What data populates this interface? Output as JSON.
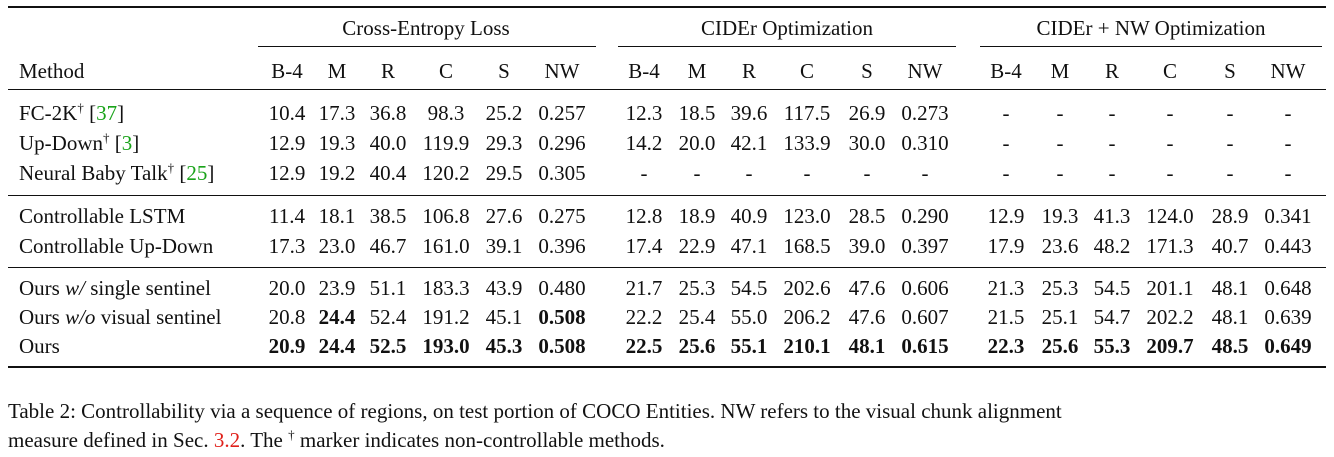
{
  "groups": [
    "Cross-Entropy Loss",
    "CIDEr Optimization",
    "CIDEr + NW Optimization"
  ],
  "method_header": "Method",
  "metrics": [
    "B-4",
    "M",
    "R",
    "C",
    "S",
    "NW"
  ],
  "ref_symbol": "†",
  "rows": [
    {
      "name": "FC-2K",
      "dagger": true,
      "ref": "37",
      "cells": [
        "10.4",
        "17.3",
        "36.8",
        "98.3",
        "25.2",
        "0.257",
        "12.3",
        "18.5",
        "39.6",
        "117.5",
        "26.9",
        "0.273",
        "-",
        "-",
        "-",
        "-",
        "-",
        "-"
      ],
      "bold": []
    },
    {
      "name": "Up-Down",
      "dagger": true,
      "ref": "3",
      "cells": [
        "12.9",
        "19.3",
        "40.0",
        "119.9",
        "29.3",
        "0.296",
        "14.2",
        "20.0",
        "42.1",
        "133.9",
        "30.0",
        "0.310",
        "-",
        "-",
        "-",
        "-",
        "-",
        "-"
      ],
      "bold": []
    },
    {
      "name": "Neural Baby Talk",
      "dagger": true,
      "ref": "25",
      "cells": [
        "12.9",
        "19.2",
        "40.4",
        "120.2",
        "29.5",
        "0.305",
        "-",
        "-",
        "-",
        "-",
        "-",
        "-",
        "-",
        "-",
        "-",
        "-",
        "-",
        "-"
      ],
      "bold": []
    },
    {
      "name": "Controllable LSTM",
      "cells": [
        "11.4",
        "18.1",
        "38.5",
        "106.8",
        "27.6",
        "0.275",
        "12.8",
        "18.9",
        "40.9",
        "123.0",
        "28.5",
        "0.290",
        "12.9",
        "19.3",
        "41.3",
        "124.0",
        "28.9",
        "0.341"
      ],
      "bold": []
    },
    {
      "name": "Controllable Up-Down",
      "cells": [
        "17.3",
        "23.0",
        "46.7",
        "161.0",
        "39.1",
        "0.396",
        "17.4",
        "22.9",
        "47.1",
        "168.5",
        "39.0",
        "0.397",
        "17.9",
        "23.6",
        "48.2",
        "171.3",
        "40.7",
        "0.443"
      ],
      "bold": []
    },
    {
      "name_pre": "Ours ",
      "name_it": "w/",
      "name_post": " single sentinel",
      "cells": [
        "20.0",
        "23.9",
        "51.1",
        "183.3",
        "43.9",
        "0.480",
        "21.7",
        "25.3",
        "54.5",
        "202.6",
        "47.6",
        "0.606",
        "21.3",
        "25.3",
        "54.5",
        "201.1",
        "48.1",
        "0.648"
      ],
      "bold": []
    },
    {
      "name_pre": "Ours ",
      "name_it": "w/o",
      "name_post": " visual sentinel",
      "cells": [
        "20.8",
        "24.4",
        "52.4",
        "191.2",
        "45.1",
        "0.508",
        "22.2",
        "25.4",
        "55.0",
        "206.2",
        "47.6",
        "0.607",
        "21.5",
        "25.1",
        "54.7",
        "202.2",
        "48.1",
        "0.639"
      ],
      "bold": [
        1,
        5
      ]
    },
    {
      "name": "Ours",
      "cells": [
        "20.9",
        "24.4",
        "52.5",
        "193.0",
        "45.3",
        "0.508",
        "22.5",
        "25.6",
        "55.1",
        "210.1",
        "48.1",
        "0.615",
        "22.3",
        "25.6",
        "55.3",
        "209.7",
        "48.5",
        "0.649"
      ],
      "bold": [
        0,
        1,
        2,
        3,
        4,
        5,
        6,
        7,
        8,
        9,
        10,
        11,
        12,
        13,
        14,
        15,
        16,
        17
      ]
    }
  ],
  "caption": {
    "line1": "Table 2: Controllability via a sequence of regions, on test portion of COCO Entities. NW refers to the visual chunk alignment",
    "line2_pre": "measure defined in Sec. ",
    "line2_ref": "3.2",
    "line2_mid": ". The ",
    "line2_sup": "†",
    "line2_post": " marker indicates non-controllable methods."
  }
}
